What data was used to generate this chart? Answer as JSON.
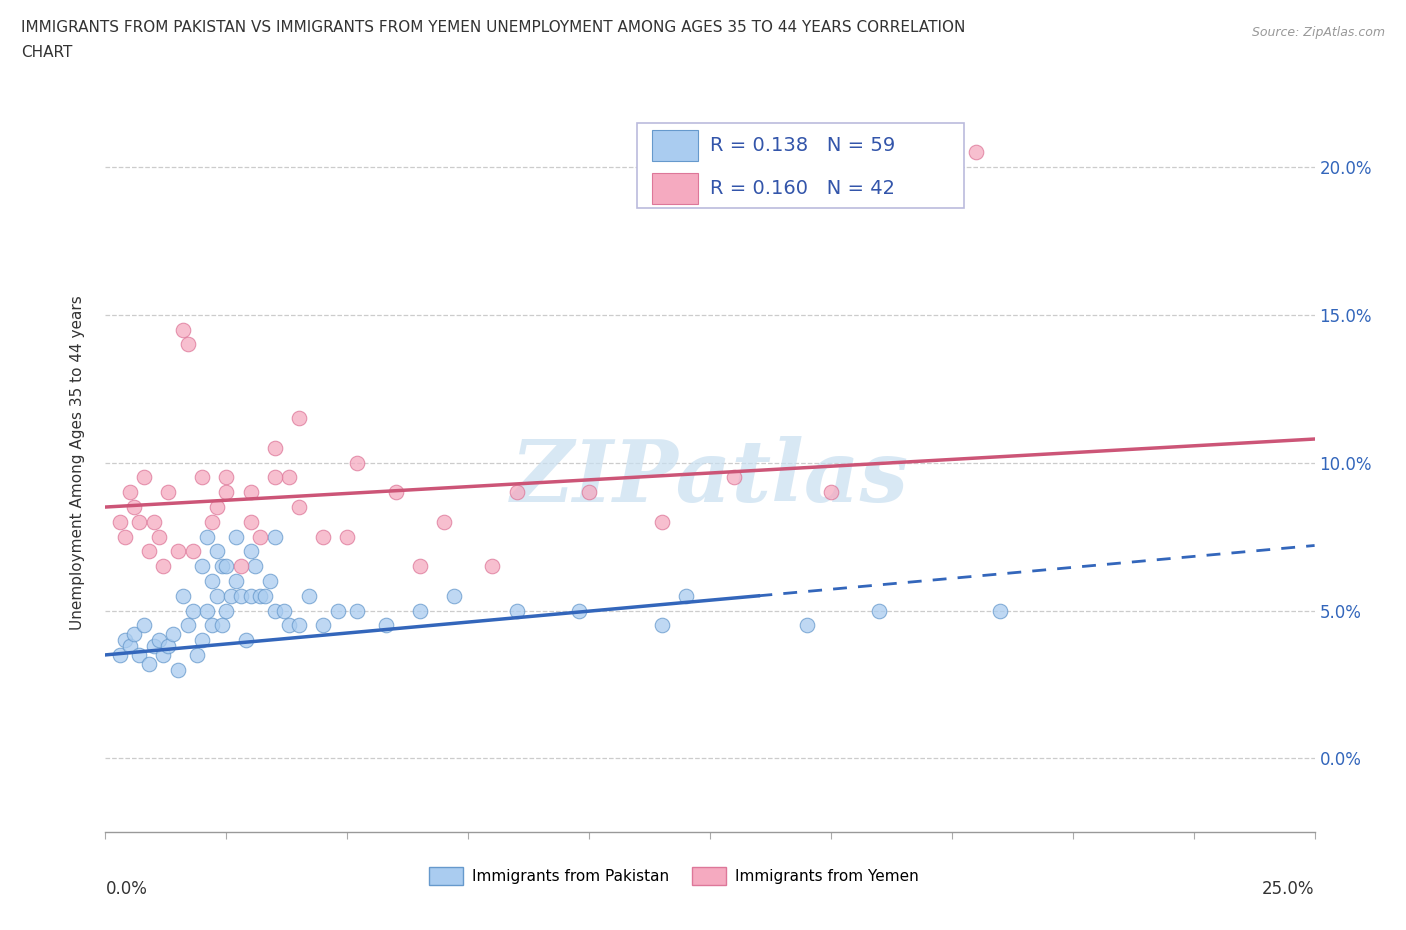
{
  "title_line1": "IMMIGRANTS FROM PAKISTAN VS IMMIGRANTS FROM YEMEN UNEMPLOYMENT AMONG AGES 35 TO 44 YEARS CORRELATION",
  "title_line2": "CHART",
  "source": "Source: ZipAtlas.com",
  "ylabel": "Unemployment Among Ages 35 to 44 years",
  "xlim": [
    0.0,
    25.0
  ],
  "ylim": [
    -2.5,
    22.5
  ],
  "ytick_values": [
    0.0,
    5.0,
    10.0,
    15.0,
    20.0
  ],
  "xtick_values": [
    0.0,
    2.5,
    5.0,
    7.5,
    10.0,
    12.5,
    15.0,
    17.5,
    20.0,
    22.5,
    25.0
  ],
  "pakistan_color": "#aaccf0",
  "pakistan_edge": "#6699cc",
  "yemen_color": "#f5aac0",
  "yemen_edge": "#dd7799",
  "legend_color": "#3355aa",
  "pakistan_R": "0.138",
  "pakistan_N": "59",
  "yemen_R": "0.160",
  "yemen_N": "42",
  "pakistan_trend_x0": 0.0,
  "pakistan_trend_x1": 25.0,
  "pakistan_trend_y0": 3.5,
  "pakistan_trend_y1": 7.2,
  "pakistan_solid_end_x": 13.5,
  "yemen_trend_x0": 0.0,
  "yemen_trend_x1": 25.0,
  "yemen_trend_y0": 8.5,
  "yemen_trend_y1": 10.8,
  "pakistan_line_color": "#3366bb",
  "yemen_line_color": "#cc5577",
  "watermark_text": "ZIPatlas",
  "watermark_color": "#c8dff0",
  "pakistan_scatter_x": [
    0.3,
    0.4,
    0.5,
    0.6,
    0.7,
    0.8,
    0.9,
    1.0,
    1.1,
    1.2,
    1.3,
    1.4,
    1.5,
    1.6,
    1.7,
    1.8,
    1.9,
    2.0,
    2.0,
    2.1,
    2.1,
    2.2,
    2.2,
    2.3,
    2.3,
    2.4,
    2.4,
    2.5,
    2.5,
    2.6,
    2.7,
    2.7,
    2.8,
    2.9,
    3.0,
    3.0,
    3.1,
    3.2,
    3.3,
    3.4,
    3.5,
    3.5,
    3.7,
    3.8,
    4.0,
    4.2,
    4.5,
    4.8,
    5.2,
    5.8,
    6.5,
    7.2,
    8.5,
    9.8,
    11.5,
    12.0,
    14.5,
    16.0,
    18.5
  ],
  "pakistan_scatter_y": [
    3.5,
    4.0,
    3.8,
    4.2,
    3.5,
    4.5,
    3.2,
    3.8,
    4.0,
    3.5,
    3.8,
    4.2,
    3.0,
    5.5,
    4.5,
    5.0,
    3.5,
    6.5,
    4.0,
    7.5,
    5.0,
    6.0,
    4.5,
    7.0,
    5.5,
    6.5,
    4.5,
    5.0,
    6.5,
    5.5,
    7.5,
    6.0,
    5.5,
    4.0,
    7.0,
    5.5,
    6.5,
    5.5,
    5.5,
    6.0,
    5.0,
    7.5,
    5.0,
    4.5,
    4.5,
    5.5,
    4.5,
    5.0,
    5.0,
    4.5,
    5.0,
    5.5,
    5.0,
    5.0,
    4.5,
    5.5,
    4.5,
    5.0,
    5.0
  ],
  "yemen_scatter_x": [
    0.3,
    0.4,
    0.5,
    0.6,
    0.7,
    0.8,
    0.9,
    1.0,
    1.1,
    1.2,
    1.3,
    1.5,
    1.6,
    1.7,
    2.0,
    2.2,
    2.5,
    2.8,
    3.0,
    3.2,
    3.5,
    3.8,
    4.0,
    4.5,
    5.2,
    6.0,
    7.0,
    8.5,
    10.0,
    11.5,
    13.0,
    15.0,
    18.0,
    2.3,
    1.8,
    2.5,
    3.0,
    3.5,
    4.0,
    5.0,
    6.5,
    8.0
  ],
  "yemen_scatter_y": [
    8.0,
    7.5,
    9.0,
    8.5,
    8.0,
    9.5,
    7.0,
    8.0,
    7.5,
    6.5,
    9.0,
    7.0,
    14.5,
    14.0,
    9.5,
    8.0,
    9.5,
    6.5,
    9.0,
    7.5,
    10.5,
    9.5,
    11.5,
    7.5,
    10.0,
    9.0,
    8.0,
    9.0,
    9.0,
    8.0,
    9.5,
    9.0,
    20.5,
    8.5,
    7.0,
    9.0,
    8.0,
    9.5,
    8.5,
    7.5,
    6.5,
    6.5
  ]
}
